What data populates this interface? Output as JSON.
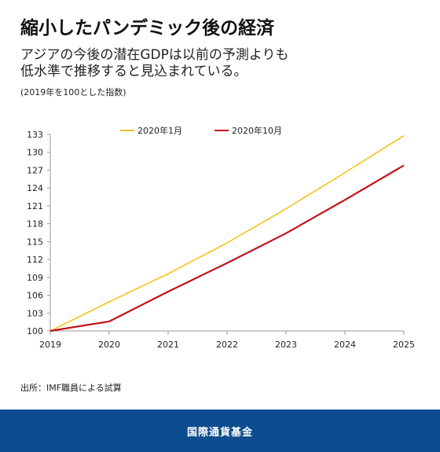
{
  "header": {
    "title": "縮小したパンデミック後の経済",
    "subtitle_lines": [
      "アジアの今後の潜在GDPは以前の予測よりも",
      "低水準で推移すると見込まれている。"
    ],
    "note": "(2019年を100とした指数)"
  },
  "footer": {
    "source": "出所：IMF職員による試算",
    "org": "国際通貨基金",
    "bar_color": "#0d4d8f"
  },
  "chart_data": {
    "type": "line",
    "x": [
      "2019",
      "2020",
      "2021",
      "2022",
      "2023",
      "2024",
      "2025"
    ],
    "yticks": [
      "100",
      "103",
      "106",
      "109",
      "112",
      "115",
      "118",
      "121",
      "124",
      "127",
      "130",
      "133"
    ],
    "ylim": [
      100,
      133
    ],
    "series": [
      {
        "name": "2020年1月",
        "color": "#f2c318",
        "values": [
          100,
          104.9,
          109.6,
          114.8,
          120.5,
          126.6,
          132.8
        ]
      },
      {
        "name": "2020年10月",
        "color": "#c0141c",
        "values": [
          100,
          101.6,
          106.6,
          111.4,
          116.4,
          122.0,
          127.8
        ]
      }
    ],
    "legend": "top"
  }
}
